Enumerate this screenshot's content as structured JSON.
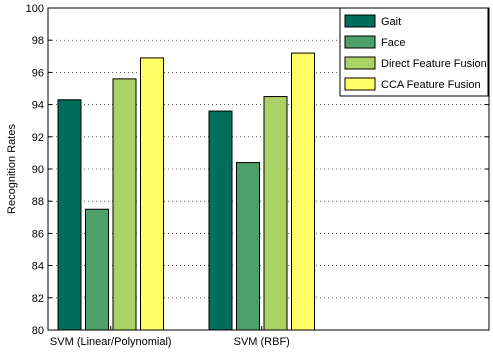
{
  "chart_data": {
    "type": "bar",
    "title": "",
    "xlabel": "",
    "ylabel": "Recognition Rates",
    "ylim": [
      80,
      100
    ],
    "yticks": [
      80,
      82,
      84,
      86,
      88,
      90,
      92,
      94,
      96,
      98,
      100
    ],
    "grid": "dotted horizontal",
    "legend_position": "top-right",
    "categories": [
      "SVM (Linear/Polynomial)",
      "SVM (RBF)"
    ],
    "series": [
      {
        "name": "Gait",
        "values": [
          94.3,
          93.6
        ],
        "color": "#006e5a"
      },
      {
        "name": "Face",
        "values": [
          87.5,
          90.4
        ],
        "color": "#4da06a"
      },
      {
        "name": "Direct Feature Fusion",
        "values": [
          95.6,
          94.5
        ],
        "color": "#aad264"
      },
      {
        "name": "CCA Feature Fusion",
        "values": [
          96.9,
          97.2
        ],
        "color": "#ffff66"
      }
    ]
  }
}
